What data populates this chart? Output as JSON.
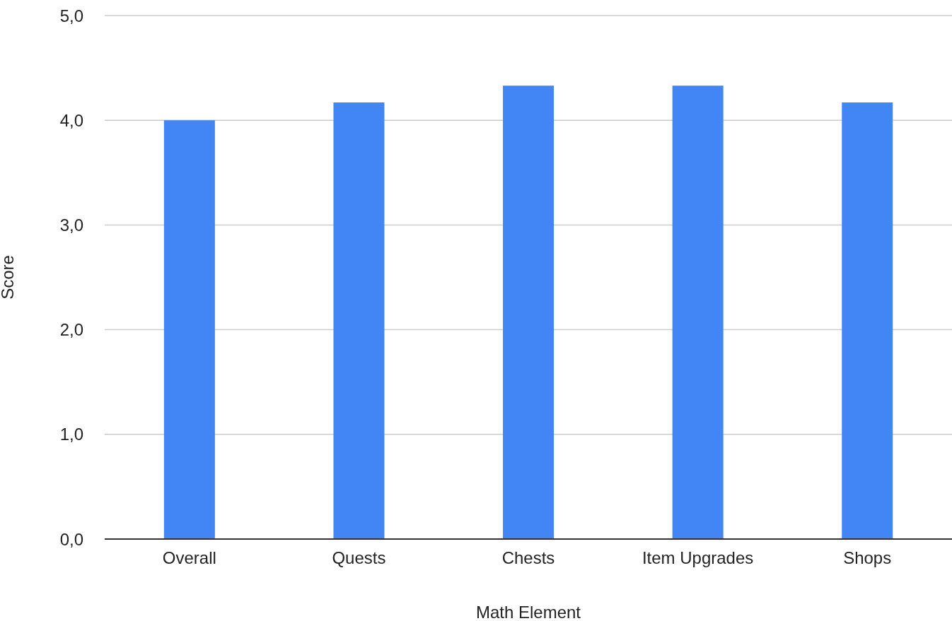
{
  "chart_data": {
    "type": "bar",
    "xlabel": "Math Element",
    "ylabel": "Score",
    "categories": [
      "Overall",
      "Quests",
      "Chests",
      "Item Upgrades",
      "Shops"
    ],
    "values": [
      4.0,
      4.17,
      4.33,
      4.33,
      4.17
    ],
    "color": "#4285f4",
    "ylim": [
      0,
      5
    ],
    "yticks": [
      {
        "value": 0,
        "label": "0,0"
      },
      {
        "value": 1,
        "label": "1,0"
      },
      {
        "value": 2,
        "label": "2,0"
      },
      {
        "value": 3,
        "label": "3,0"
      },
      {
        "value": 4,
        "label": "4,0"
      },
      {
        "value": 5,
        "label": "5,0"
      }
    ],
    "grid": "y"
  }
}
